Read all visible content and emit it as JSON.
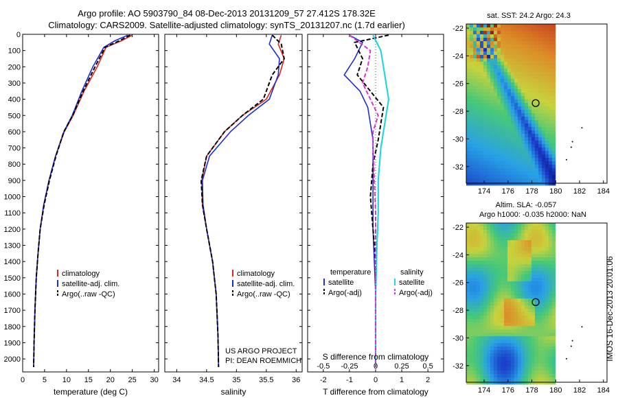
{
  "header": {
    "title_line1": "Argo profile: AO 5903790_84 08-Dec-2013 20131209_57 27.412S 178.32E",
    "title_line2": "Climatology: CARS2009. Satellite-adjusted climatology: synTS_20131207.nc (1.7d earlier)"
  },
  "credits": {
    "line1": "US ARGO PROJECT",
    "line2": "PI: DEAN ROEMMICH"
  },
  "side_label": "IMOS 16-Dec-2013 20:01:06",
  "colors": {
    "climatology": "#e0201a",
    "satellite": "#1c2ad8",
    "argo": "#000000",
    "sal_satellite": "#22d6e6",
    "sal_argo": "#e030d8"
  },
  "chart_data": [
    {
      "type": "line",
      "id": "temperature",
      "xlabel": "temperature (deg C)",
      "xlim": [
        0,
        31
      ],
      "xticks": [
        0,
        5,
        10,
        15,
        20,
        25,
        30
      ],
      "ylim": [
        2080,
        0
      ],
      "yticks": [
        0,
        100,
        200,
        300,
        400,
        500,
        600,
        700,
        800,
        900,
        1000,
        1100,
        1200,
        1300,
        1400,
        1500,
        1600,
        1700,
        1800,
        1900,
        2000
      ],
      "legend": [
        "climatology",
        "satellite-adj. clim.",
        "Argo(..raw -QC)"
      ],
      "series": [
        {
          "name": "climatology",
          "x": [
            25,
            22.5,
            19,
            17,
            14,
            11.5,
            9.5,
            7.5,
            6,
            4.8,
            4,
            3.5,
            3.1,
            2.8,
            2.6,
            2.5
          ],
          "y": [
            5,
            40,
            80,
            200,
            350,
            500,
            600,
            750,
            900,
            1050,
            1200,
            1350,
            1500,
            1700,
            1900,
            2050
          ]
        },
        {
          "name": "satellite-adj. clim.",
          "x": [
            24,
            21,
            18.5,
            16,
            13.5,
            11.3,
            9.4,
            7.5,
            6,
            4.8,
            4,
            3.5,
            3.1,
            2.8,
            2.6,
            2.5
          ],
          "y": [
            5,
            40,
            80,
            200,
            350,
            500,
            600,
            750,
            900,
            1050,
            1200,
            1350,
            1500,
            1700,
            1900,
            2050
          ]
        },
        {
          "name": "Argo(..raw -QC)",
          "x": [
            24.5,
            22,
            18.8,
            16.5,
            13.8,
            11.4,
            9.4,
            7.6,
            6.1,
            4.9,
            4,
            3.5,
            3.1,
            2.8,
            2.6,
            2.5
          ],
          "y": [
            5,
            40,
            80,
            200,
            350,
            500,
            600,
            750,
            900,
            1050,
            1200,
            1350,
            1500,
            1700,
            1900,
            2050
          ]
        }
      ]
    },
    {
      "type": "line",
      "id": "salinity",
      "xlabel": "salinity",
      "xlim": [
        33.8,
        36.1
      ],
      "xticks": [
        34,
        34.5,
        35,
        35.5,
        36
      ],
      "ylim": [
        2080,
        0
      ],
      "legend": [
        "climatology",
        "satellite-adj. clim.",
        "Argo(..raw -QC)"
      ],
      "series": [
        {
          "name": "climatology",
          "x": [
            35.75,
            35.7,
            35.8,
            35.72,
            35.5,
            35.1,
            34.8,
            34.5,
            34.42,
            34.43,
            34.5,
            34.6,
            34.66,
            34.69,
            34.7
          ],
          "y": [
            5,
            60,
            150,
            250,
            400,
            500,
            600,
            750,
            900,
            1050,
            1200,
            1400,
            1600,
            1850,
            2050
          ]
        },
        {
          "name": "satellite-adj. clim.",
          "x": [
            35.6,
            35.55,
            35.72,
            35.7,
            35.55,
            35.2,
            34.9,
            34.55,
            34.43,
            34.44,
            34.5,
            34.6,
            34.66,
            34.69,
            34.7
          ],
          "y": [
            5,
            60,
            150,
            250,
            400,
            500,
            600,
            750,
            900,
            1050,
            1200,
            1400,
            1600,
            1850,
            2050
          ]
        },
        {
          "name": "Argo(..raw -QC)",
          "x": [
            35.6,
            35.75,
            35.8,
            35.6,
            35.45,
            35.1,
            34.8,
            34.5,
            34.41,
            34.43,
            34.5,
            34.6,
            34.66,
            34.69,
            34.7
          ],
          "y": [
            5,
            60,
            150,
            250,
            400,
            500,
            600,
            750,
            900,
            1050,
            1200,
            1400,
            1600,
            1850,
            2050
          ]
        }
      ]
    },
    {
      "type": "line",
      "id": "difference",
      "xlabel": "T difference from climatology",
      "xlabel_top": "S difference from climatology",
      "xlim": [
        -2.6,
        2.6
      ],
      "xticks": [
        -2,
        -1,
        0,
        1,
        2
      ],
      "xticks_top": [
        "-0.5",
        "-0.25",
        "0",
        "0.25",
        "0.5"
      ],
      "xticks_top_pos": [
        -2,
        -1,
        0,
        1,
        2
      ],
      "ylim": [
        2080,
        0
      ],
      "legend_temperature_title": "temperature",
      "legend_salinity_title": "salinity",
      "legend": [
        "satellite",
        "Argo(-adj)",
        "satellite",
        "Argo(-adj)"
      ],
      "series": [
        {
          "name": "temperature satellite",
          "x": [
            -1,
            -0.5,
            -0.8,
            -1.2,
            -0.6,
            -0.3,
            -0.2,
            -0.1,
            -0.1,
            -0.1,
            -0.1,
            -0.05,
            0,
            0,
            0
          ],
          "y": [
            5,
            50,
            150,
            250,
            350,
            450,
            550,
            650,
            800,
            1000,
            1200,
            1400,
            1600,
            1850,
            2050
          ]
        },
        {
          "name": "temperature Argo(-adj)",
          "x": [
            0.5,
            -0.8,
            -0.5,
            -0.7,
            -0.2,
            0.3,
            0.2,
            0.1,
            -0.1,
            -0.2,
            -0.1,
            0,
            0,
            0,
            0
          ],
          "y": [
            5,
            50,
            150,
            250,
            350,
            450,
            550,
            650,
            800,
            1000,
            1200,
            1400,
            1600,
            1850,
            2050
          ]
        },
        {
          "name": "salinity satellite",
          "x": [
            -0.1,
            0.2,
            0.3,
            0.4,
            0.5,
            0.4,
            0.3,
            0.2,
            0.1,
            0.1,
            0.05,
            0,
            0
          ],
          "y": [
            5,
            100,
            200,
            300,
            400,
            500,
            600,
            700,
            900,
            1100,
            1300,
            1600,
            2050
          ]
        },
        {
          "name": "salinity Argo(-adj)",
          "x": [
            -1,
            -0.2,
            -0.3,
            -0.5,
            -0.2,
            0.1,
            -0.1,
            -0.1,
            -0.05,
            0,
            0,
            0,
            0
          ],
          "y": [
            5,
            100,
            200,
            300,
            400,
            500,
            600,
            700,
            900,
            1100,
            1300,
            1600,
            2050
          ]
        }
      ]
    },
    {
      "type": "heatmap",
      "id": "sst_map",
      "title": "sat. SST: 24.2 Argo: 24.3",
      "xlim": [
        172.5,
        184.3
      ],
      "ylim": [
        -33.2,
        -21.7
      ],
      "xticks": [
        174,
        176,
        178,
        180,
        182,
        184
      ],
      "yticks": [
        -22,
        -24,
        -26,
        -28,
        -30,
        -32
      ],
      "marker": [
        178.32,
        -27.412
      ]
    },
    {
      "type": "heatmap",
      "id": "sla_map",
      "title_line1": "Altim. SLA: -0.057",
      "title_line2": "Argo h1000: -0.035 h2000: NaN",
      "xlim": [
        172.5,
        184.3
      ],
      "ylim": [
        -33.2,
        -21.7
      ],
      "xticks": [
        174,
        176,
        178,
        180,
        182,
        184
      ],
      "yticks": [
        -22,
        -24,
        -26,
        -28,
        -30,
        -32
      ],
      "marker": [
        178.32,
        -27.412
      ]
    }
  ]
}
